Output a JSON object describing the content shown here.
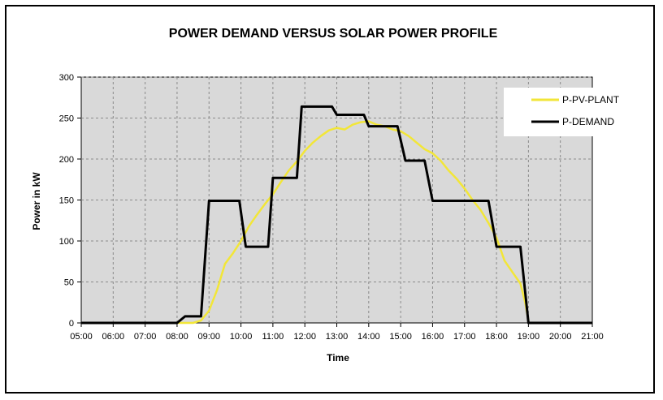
{
  "chart_data": {
    "type": "line",
    "title": "POWER DEMAND VERSUS SOLAR POWER PROFILE",
    "xlabel": "Time",
    "ylabel": "Power in kW",
    "xlim_hours": [
      5,
      21
    ],
    "ylim": [
      0,
      300
    ],
    "y_ticks": [
      0,
      50,
      100,
      150,
      200,
      250,
      300
    ],
    "x_tick_labels": [
      "05:00",
      "06:00",
      "07:00",
      "08:00",
      "09:00",
      "10:00",
      "11:00",
      "12:00",
      "13:00",
      "14:00",
      "15:00",
      "16:00",
      "17:00",
      "18:00",
      "19:00",
      "20:00",
      "21:00"
    ],
    "grid": true,
    "legend_position": "top-right",
    "series": [
      {
        "name": "P-PV-PLANT",
        "color": "#f2e638",
        "x_hours": [
          8.0,
          8.5,
          8.75,
          9.0,
          9.25,
          9.5,
          9.75,
          10.0,
          10.25,
          10.5,
          10.75,
          11.0,
          11.25,
          11.5,
          11.75,
          12.0,
          12.25,
          12.5,
          12.75,
          13.0,
          13.25,
          13.5,
          13.75,
          14.0,
          14.25,
          14.5,
          14.75,
          15.0,
          15.25,
          15.5,
          15.75,
          16.0,
          16.25,
          16.5,
          16.75,
          17.0,
          17.25,
          17.5,
          17.75,
          18.0,
          18.25,
          18.5,
          18.75,
          18.9,
          19.0
        ],
        "values": [
          0,
          0,
          3,
          15,
          40,
          72,
          85,
          100,
          118,
          132,
          145,
          157,
          172,
          186,
          197,
          210,
          220,
          228,
          235,
          238,
          236,
          242,
          245,
          246,
          242,
          240,
          236,
          234,
          228,
          220,
          212,
          207,
          198,
          186,
          176,
          164,
          150,
          138,
          122,
          104,
          76,
          62,
          48,
          25,
          3
        ]
      },
      {
        "name": "P-DEMAND",
        "color": "#000000",
        "x_hours": [
          5.0,
          8.0,
          8.25,
          8.75,
          9.0,
          9.95,
          10.15,
          10.85,
          11.0,
          11.75,
          11.9,
          12.85,
          13.0,
          13.85,
          14.0,
          14.9,
          15.15,
          15.75,
          16.0,
          17.75,
          18.0,
          18.75,
          19.0,
          21.0
        ],
        "values": [
          0,
          0,
          8,
          8,
          149,
          149,
          93,
          93,
          177,
          177,
          264,
          264,
          254,
          254,
          240,
          240,
          198,
          198,
          149,
          149,
          93,
          93,
          0,
          0
        ]
      }
    ]
  }
}
